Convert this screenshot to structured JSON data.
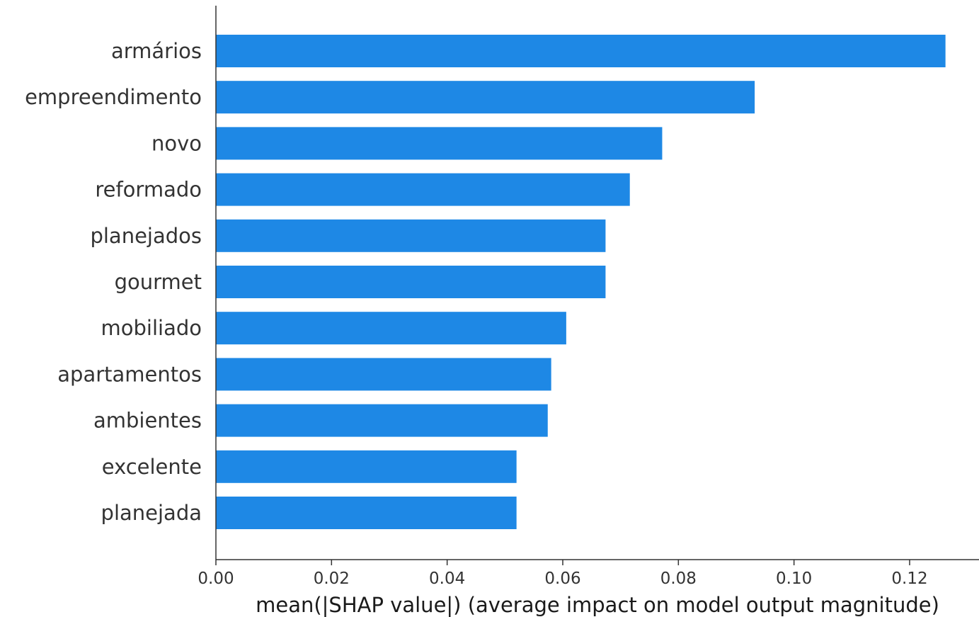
{
  "chart_data": {
    "type": "bar",
    "orientation": "horizontal",
    "categories": [
      "armários",
      "empreendimento",
      "novo",
      "reformado",
      "planejados",
      "gourmet",
      "mobiliado",
      "apartamentos",
      "ambientes",
      "excelente",
      "planejada"
    ],
    "values": [
      0.1262,
      0.0932,
      0.0772,
      0.0716,
      0.0674,
      0.0674,
      0.0606,
      0.058,
      0.0574,
      0.052,
      0.052
    ],
    "xlabel": "mean(|SHAP value|) (average impact on model output magnitude)",
    "ylabel": "",
    "title": "",
    "xlim": [
      0,
      0.132
    ],
    "xticks": [
      0.0,
      0.02,
      0.04,
      0.06,
      0.08,
      0.1,
      0.12
    ],
    "xtick_labels": [
      "0.00",
      "0.02",
      "0.04",
      "0.06",
      "0.08",
      "0.10",
      "0.12"
    ],
    "bar_color": "#1e88e5",
    "axis_color": "#333333",
    "grid": false,
    "legend": "none"
  }
}
